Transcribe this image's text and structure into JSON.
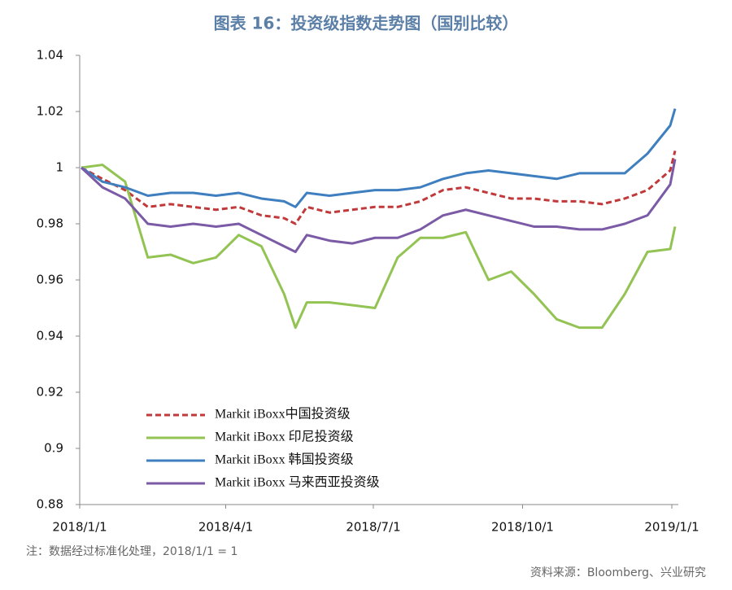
{
  "chart_data": {
    "type": "line",
    "title": "图表 16：投资级指数走势图（国别比较）",
    "note": "注：数据经过标准化处理，2018/1/1 = 1",
    "source": "资料来源：Bloomberg、兴业研究",
    "x": [
      "2018-01-02",
      "2018-01-15",
      "2018-01-29",
      "2018-02-12",
      "2018-02-26",
      "2018-03-12",
      "2018-03-26",
      "2018-04-09",
      "2018-04-23",
      "2018-05-07",
      "2018-05-14",
      "2018-05-21",
      "2018-06-04",
      "2018-06-18",
      "2018-07-02",
      "2018-07-16",
      "2018-07-30",
      "2018-08-13",
      "2018-08-27",
      "2018-09-10",
      "2018-09-24",
      "2018-10-08",
      "2018-10-22",
      "2018-11-05",
      "2018-11-19",
      "2018-12-03",
      "2018-12-17",
      "2018-12-31",
      "2019-01-03"
    ],
    "series": [
      {
        "name": "Markit iBoxx中国投资级",
        "color": "#c0393b",
        "dash": true,
        "values": [
          1.0,
          0.996,
          0.992,
          0.986,
          0.987,
          0.986,
          0.985,
          0.986,
          0.983,
          0.982,
          0.98,
          0.986,
          0.984,
          0.985,
          0.986,
          0.986,
          0.988,
          0.992,
          0.993,
          0.991,
          0.989,
          0.989,
          0.988,
          0.988,
          0.987,
          0.989,
          0.992,
          0.999,
          1.006
        ]
      },
      {
        "name": "Markit iBoxx 印尼投资级",
        "color": "#92c353",
        "dash": false,
        "values": [
          1.0,
          1.001,
          0.995,
          0.968,
          0.969,
          0.966,
          0.968,
          0.976,
          0.972,
          0.955,
          0.943,
          0.952,
          0.952,
          0.951,
          0.95,
          0.968,
          0.975,
          0.975,
          0.977,
          0.96,
          0.963,
          0.955,
          0.946,
          0.943,
          0.943,
          0.955,
          0.97,
          0.971,
          0.979
        ]
      },
      {
        "name": "Markit iBoxx 韩国投资级",
        "color": "#3f7fbf",
        "dash": false,
        "values": [
          1.0,
          0.995,
          0.993,
          0.99,
          0.991,
          0.991,
          0.99,
          0.991,
          0.989,
          0.988,
          0.986,
          0.991,
          0.99,
          0.991,
          0.992,
          0.992,
          0.993,
          0.996,
          0.998,
          0.999,
          0.998,
          0.997,
          0.996,
          0.998,
          0.998,
          0.998,
          1.005,
          1.015,
          1.021
        ]
      },
      {
        "name": "Markit iBoxx 马来西亚投资级",
        "color": "#7b5aa6",
        "dash": false,
        "values": [
          1.0,
          0.993,
          0.989,
          0.98,
          0.979,
          0.98,
          0.979,
          0.98,
          0.976,
          0.972,
          0.97,
          0.976,
          0.974,
          0.973,
          0.975,
          0.975,
          0.978,
          0.983,
          0.985,
          0.983,
          0.981,
          0.979,
          0.979,
          0.978,
          0.978,
          0.98,
          0.983,
          0.994,
          1.003
        ]
      }
    ],
    "xlim": [
      "2018-01-01",
      "2019-01-05"
    ],
    "xticks": [
      {
        "value": "2018-01-01",
        "label": "2018/1/1"
      },
      {
        "value": "2018-04-01",
        "label": "2018/4/1"
      },
      {
        "value": "2018-07-01",
        "label": "2018/7/1"
      },
      {
        "value": "2018-10-01",
        "label": "2018/10/1"
      },
      {
        "value": "2019-01-01",
        "label": "2019/1/1"
      }
    ],
    "ylim": [
      0.88,
      1.04
    ],
    "yticks": [
      0.88,
      0.9,
      0.92,
      0.94,
      0.96,
      0.98,
      1,
      1.02,
      1.04
    ],
    "grid": false,
    "legend": "lower left"
  }
}
